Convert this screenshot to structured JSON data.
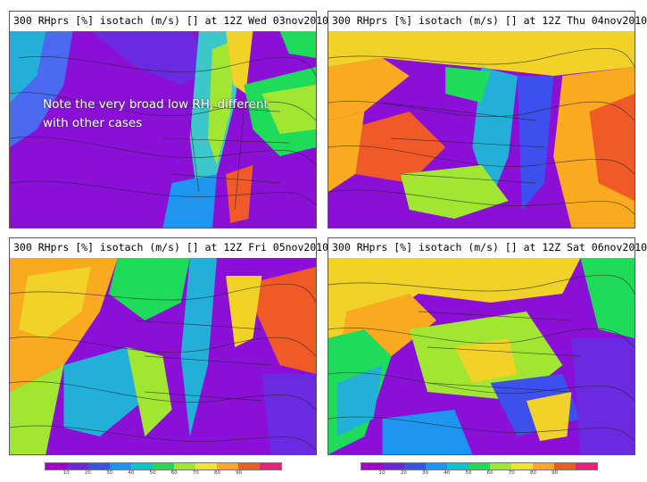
{
  "panels": [
    {
      "title": "300 RHprs [%]   isotach (m/s) [] at 12Z Wed 03nov2010"
    },
    {
      "title": "300 RHprs [%]   isotach (m/s) [] at 12Z Thu 04nov2010"
    },
    {
      "title": "300 RHprs [%]   isotach (m/s) [] at 12Z Fri 05nov2010"
    },
    {
      "title": "300 RHprs [%]   isotach (m/s) [] at 12Z Sat 06nov2010"
    }
  ],
  "note": {
    "line1": "Note the very broad low RH, different",
    "line2": "with other cases"
  },
  "colorbar": {
    "tick_labels": [
      "10",
      "20",
      "30",
      "40",
      "50",
      "60",
      "70",
      "80",
      "90"
    ],
    "colors": [
      "#a000c8",
      "#6e28dc",
      "#3c50f0",
      "#1e96f0",
      "#00c8c8",
      "#1edc5a",
      "#a0e632",
      "#f0e628",
      "#faaa1e",
      "#f05a28",
      "#f01e78"
    ]
  }
}
